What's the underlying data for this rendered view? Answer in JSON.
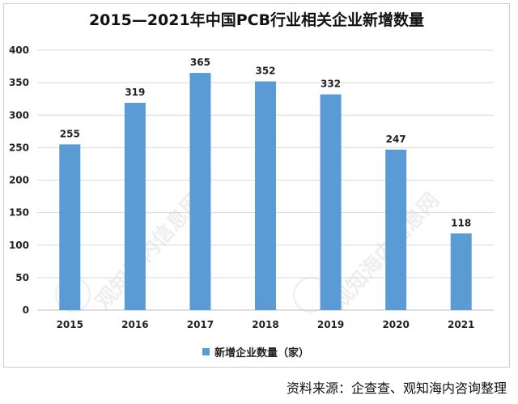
{
  "chart_data": {
    "type": "bar",
    "title": "2015—2021年中国PCB行业相关企业新增数量",
    "categories": [
      "2015",
      "2016",
      "2017",
      "2018",
      "2019",
      "2020",
      "2021"
    ],
    "series": [
      {
        "name": "新增企业数量（家）",
        "values": [
          255,
          319,
          365,
          352,
          332,
          247,
          118
        ]
      }
    ],
    "data_labels": [
      "255",
      "319",
      "365",
      "352",
      "332",
      "247",
      "118"
    ],
    "ylim": [
      0,
      400
    ],
    "yticks": [
      0,
      50,
      100,
      150,
      200,
      250,
      300,
      350,
      400
    ],
    "ytick_labels": [
      "0",
      "50",
      "100",
      "150",
      "200",
      "250",
      "300",
      "350",
      "400"
    ],
    "grid": true,
    "legend_position": "bottom",
    "bar_color": "#5b9bd5"
  },
  "source": "资料来源：企查查、观知海内咨询整理"
}
